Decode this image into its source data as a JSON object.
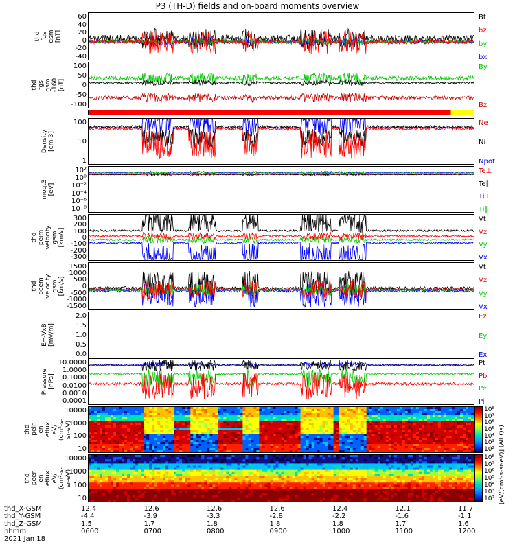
{
  "title": "P3 (TH-D) fields and on-board moments overview",
  "panels": [
    {
      "id": "fgs_gsm",
      "ylabel": [
        "thd",
        "fgs",
        "gsm",
        "[nT]"
      ],
      "ticks": [
        "60",
        "40",
        "20",
        "0",
        "-20",
        "-40"
      ],
      "legend": [
        {
          "t": "Bt",
          "c": "#000000"
        },
        {
          "t": "bz",
          "c": "#ff0000"
        },
        {
          "t": "by",
          "c": "#00cc00"
        },
        {
          "t": "bx",
          "c": "#0000ff"
        }
      ]
    },
    {
      "id": "fgs_gsm_bz",
      "ylabel": [
        "thd",
        "fgs",
        "gsm",
        "-160",
        "[nT]"
      ],
      "ticks": [
        "100",
        "50",
        "0",
        "-50",
        "-100"
      ],
      "legend": [
        {
          "t": "By",
          "c": "#00cc00"
        },
        {
          "t": "Bz",
          "c": "#cc0000"
        }
      ]
    },
    {
      "id": "density",
      "ylabel": [
        "Density",
        "[cm-3]"
      ],
      "ticks": [
        "100",
        "10",
        "1"
      ],
      "legend": [
        {
          "t": "Ne",
          "c": "#cc0000"
        },
        {
          "t": "Ni",
          "c": "#000000"
        },
        {
          "t": "Npot",
          "c": "#0000ff"
        }
      ]
    },
    {
      "id": "temp",
      "ylabel": [
        "moqt3",
        "[eV]"
      ],
      "ticks": [
        "10²",
        "10⁰",
        "10⁻²",
        "10⁻⁴",
        "10⁻⁶",
        "10⁻⁸"
      ],
      "legend": [
        {
          "t": "Te⊥",
          "c": "#cc0000"
        },
        {
          "t": "Te∥",
          "c": "#000000"
        },
        {
          "t": "Ti⊥",
          "c": "#0000ff"
        },
        {
          "t": "Ti∥",
          "c": "#00cc00"
        }
      ]
    },
    {
      "id": "ion_vel",
      "ylabel": [
        "thd",
        "peim",
        "velocity",
        "gsm",
        "[km/s]"
      ],
      "ticks": [
        "300",
        "200",
        "100",
        "0",
        "-100",
        "-200",
        "-300"
      ],
      "legend": [
        {
          "t": "Vt",
          "c": "#000000"
        },
        {
          "t": "Vz",
          "c": "#ff0000"
        },
        {
          "t": "Vy",
          "c": "#00cc00"
        },
        {
          "t": "Vx",
          "c": "#0000ff"
        }
      ]
    },
    {
      "id": "elec_vel",
      "ylabel": [
        "thd",
        "peem",
        "velocity",
        "gsm",
        "[km/s]"
      ],
      "ticks": [
        "1500",
        "1000",
        "500",
        "0",
        "-500",
        "-1000",
        "-1500"
      ],
      "legend": [
        {
          "t": "Vt",
          "c": "#000000"
        },
        {
          "t": "Vz",
          "c": "#ff0000"
        },
        {
          "t": "Vy",
          "c": "#00cc00"
        },
        {
          "t": "Vx",
          "c": "#0000ff"
        }
      ]
    },
    {
      "id": "efield",
      "ylabel": [
        "E=-VxB",
        "[mV/m]"
      ],
      "ticks": [
        "2.0",
        "1.5",
        "1.0",
        "0.5",
        "0.0"
      ],
      "legend": [
        {
          "t": "Ez",
          "c": "#cc0000"
        },
        {
          "t": "Ey",
          "c": "#00cc00"
        },
        {
          "t": "Ex",
          "c": "#0000ff"
        }
      ]
    },
    {
      "id": "pressure",
      "ylabel": [
        "Pressure",
        "[nPa]"
      ],
      "ticks": [
        "10.0000",
        "1.0000",
        "0.1000",
        "0.0100",
        "0.0010",
        "0.0001"
      ],
      "legend": [
        {
          "t": "Pt",
          "c": "#000000"
        },
        {
          "t": "Pb",
          "c": "#cc0000"
        },
        {
          "t": "Pe",
          "c": "#00cc00"
        },
        {
          "t": "Pi",
          "c": "#0000ff"
        }
      ]
    },
    {
      "id": "ion_spec",
      "ylabel": [
        "thd",
        "peir",
        "en",
        "eflux",
        "eV/",
        "(cm²-s-",
        "sr-eV)"
      ],
      "ticks": [
        "10000",
        "1000",
        "100",
        "10"
      ],
      "legend": []
    },
    {
      "id": "elec_spec",
      "ylabel": [
        "thd",
        "peer",
        "en",
        "eflux",
        "eV/",
        "(cm²-s-",
        "sr-eV)"
      ],
      "ticks": [
        "10000",
        "1000",
        "100",
        "10"
      ],
      "legend": []
    }
  ],
  "colorbar": {
    "ticks": [
      "10⁸",
      "10⁷",
      "10⁶",
      "10⁵",
      "10⁴",
      "10³",
      "10²"
    ],
    "label": "[eV/(cm²-s-sr-eV)] (All Qs)"
  },
  "bottom": {
    "rows": [
      "thd_X-GSM",
      "thd_Y-GSM",
      "thd_Z-GSM",
      "hhmm",
      "2021 Jan 18"
    ],
    "cols": [
      {
        "x": "12.4",
        "y": "-4.4",
        "z": "1.5",
        "t": "0600"
      },
      {
        "x": "12.6",
        "y": "-3.9",
        "z": "1.7",
        "t": "0700"
      },
      {
        "x": "12.6",
        "y": "-3.3",
        "z": "1.8",
        "t": "0800"
      },
      {
        "x": "12.6",
        "y": "-2.8",
        "z": "1.8",
        "t": "0900"
      },
      {
        "x": "12.4",
        "y": "-2.2",
        "z": "1.8",
        "t": "1000"
      },
      {
        "x": "12.1",
        "y": "-1.6",
        "z": "1.7",
        "t": "1100"
      },
      {
        "x": "11.7",
        "y": "-1.1",
        "z": "1.6",
        "t": "1200"
      }
    ]
  },
  "chart_data": {
    "type": "line",
    "title": "P3 (TH-D) fields and on-board moments overview",
    "x": [
      "0600",
      "0700",
      "0800",
      "0900",
      "1000",
      "1100",
      "1200"
    ],
    "xlabel": "hhmm",
    "panels": [
      {
        "name": "fgs gsm [nT]",
        "ylim": [
          -40,
          60
        ],
        "series": [
          {
            "name": "Bt",
            "values": [
              10,
              15,
              12,
              14,
              22,
              12,
              13
            ]
          },
          {
            "name": "bz",
            "values": [
              5,
              -5,
              4,
              -3,
              -8,
              2,
              3
            ]
          },
          {
            "name": "by",
            "values": [
              2,
              3,
              2,
              3,
              4,
              1,
              0
            ]
          },
          {
            "name": "bx",
            "values": [
              0,
              2,
              1,
              2,
              1,
              -3,
              -2
            ]
          }
        ]
      },
      {
        "name": "fgs gsm -160 [nT]",
        "ylim": [
          -130,
          100
        ],
        "series": [
          {
            "name": "By",
            "values": [
              30,
              35,
              25,
              30,
              30,
              25,
              25
            ]
          },
          {
            "name": "Bz",
            "values": [
              -60,
              -60,
              -65,
              -65,
              -55,
              -60,
              -60
            ]
          }
        ]
      },
      {
        "name": "Density [cm-3]",
        "ylim": [
          1,
          200
        ],
        "series": [
          {
            "name": "Ne",
            "values": [
              50,
              10,
              40,
              10,
              50,
              60,
              60
            ]
          },
          {
            "name": "Ni",
            "values": [
              60,
              20,
              50,
              20,
              60,
              70,
              70
            ]
          },
          {
            "name": "Npot",
            "values": [
              60,
              150,
              150,
              150,
              70,
              80,
              80
            ]
          }
        ]
      },
      {
        "name": "Pressure [nPa]",
        "ylim": [
          0.0001,
          10
        ],
        "series": [
          {
            "name": "Pt",
            "values": [
              1.2,
              1.0,
              1.2,
              1.0,
              1.2,
              1.2,
              1.2
            ]
          },
          {
            "name": "Pb",
            "values": [
              0.03,
              0.01,
              0.03,
              0.02,
              0.03,
              0.04,
              0.04
            ]
          },
          {
            "name": "Pe",
            "values": [
              0.2,
              0.05,
              0.2,
              0.05,
              0.2,
              0.2,
              0.2
            ]
          },
          {
            "name": "Pi",
            "values": [
              1.0,
              1.0,
              1.0,
              1.0,
              1.0,
              1.0,
              1.0
            ]
          }
        ]
      }
    ]
  }
}
